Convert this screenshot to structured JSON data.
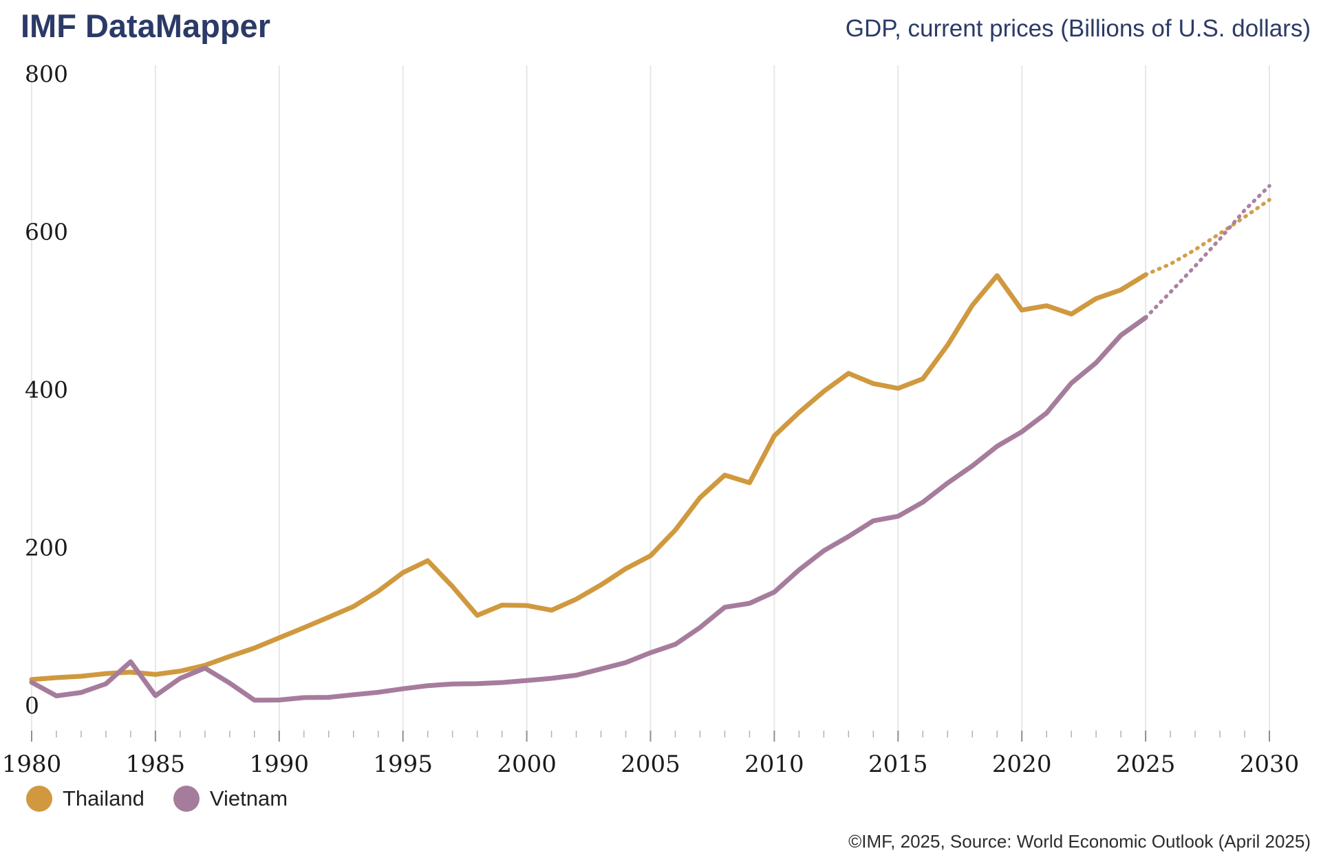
{
  "header": {
    "app_title": "IMF DataMapper",
    "chart_title": "GDP, current prices (Billions of U.S. dollars)"
  },
  "footer": {
    "source": "©IMF, 2025, Source: World Economic Outlook (April 2025)"
  },
  "legend": [
    {
      "label": "Thailand",
      "color": "#d0993f"
    },
    {
      "label": "Vietnam",
      "color": "#a67c9c"
    }
  ],
  "colors": {
    "title_navy": "#2b3a67",
    "thailand_orange": "#d0993f",
    "vietnam_purple": "#a67c9c",
    "gridline": "#e7e7e7",
    "axis_text": "#1a1a1a",
    "minor_tick": "#b3b3b3",
    "major_tick": "#8f8f8f"
  },
  "chart_data": {
    "type": "line",
    "title": "GDP, current prices (Billions of U.S. dollars)",
    "unit": "Billions of U.S. dollars",
    "xlim": [
      1980,
      2030
    ],
    "ylim": [
      0,
      800
    ],
    "xticks": [
      1980,
      1985,
      1990,
      1995,
      2000,
      2005,
      2010,
      2015,
      2020,
      2025,
      2030
    ],
    "yticks": [
      0,
      200,
      400,
      600,
      800
    ],
    "grid": "vertical-only",
    "legend_position": "bottom-left",
    "forecast_style": "dotted",
    "forecast_start": 2025,
    "x_start": 1980,
    "series": [
      {
        "name": "Thailand",
        "color": "#d0993f",
        "values": [
          32.4,
          34.9,
          36.6,
          40.0,
          41.8,
          38.9,
          43.1,
          50.5,
          61.7,
          72.3,
          85.3,
          98.2,
          111.5,
          125.0,
          144.4,
          167.9,
          183.0,
          150.2,
          113.7,
          126.7,
          126.2,
          120.3,
          134.3,
          152.3,
          172.9,
          189.3,
          221.8,
          262.9,
          291.4,
          281.7,
          341.1,
          370.8,
          397.6,
          420.3,
          407.3,
          401.3,
          413.4,
          456.1,
          506.5,
          544.1,
          500.5,
          506.0,
          495.3,
          515.0,
          526.0,
          545.3,
          558.8,
          577.0,
          597.5,
          618.4,
          640.1
        ]
      },
      {
        "name": "Vietnam",
        "color": "#a67c9c",
        "values": [
          28.9,
          11.8,
          16.0,
          27.0,
          55.0,
          12.0,
          34.0,
          47.0,
          28.0,
          6.3,
          6.5,
          9.6,
          9.9,
          13.2,
          16.3,
          20.7,
          24.7,
          26.8,
          27.2,
          28.7,
          31.2,
          34.0,
          37.9,
          45.8,
          53.9,
          66.4,
          77.0,
          98.4,
          124.0,
          129.0,
          143.2,
          171.3,
          195.6,
          213.7,
          233.5,
          239.3,
          257.1,
          281.4,
          303.1,
          327.9,
          346.3,
          370.1,
          408.0,
          433.7,
          468.5,
          490.9,
          523.1,
          556.2,
          590.6,
          626.9,
          657.8
        ]
      }
    ]
  }
}
